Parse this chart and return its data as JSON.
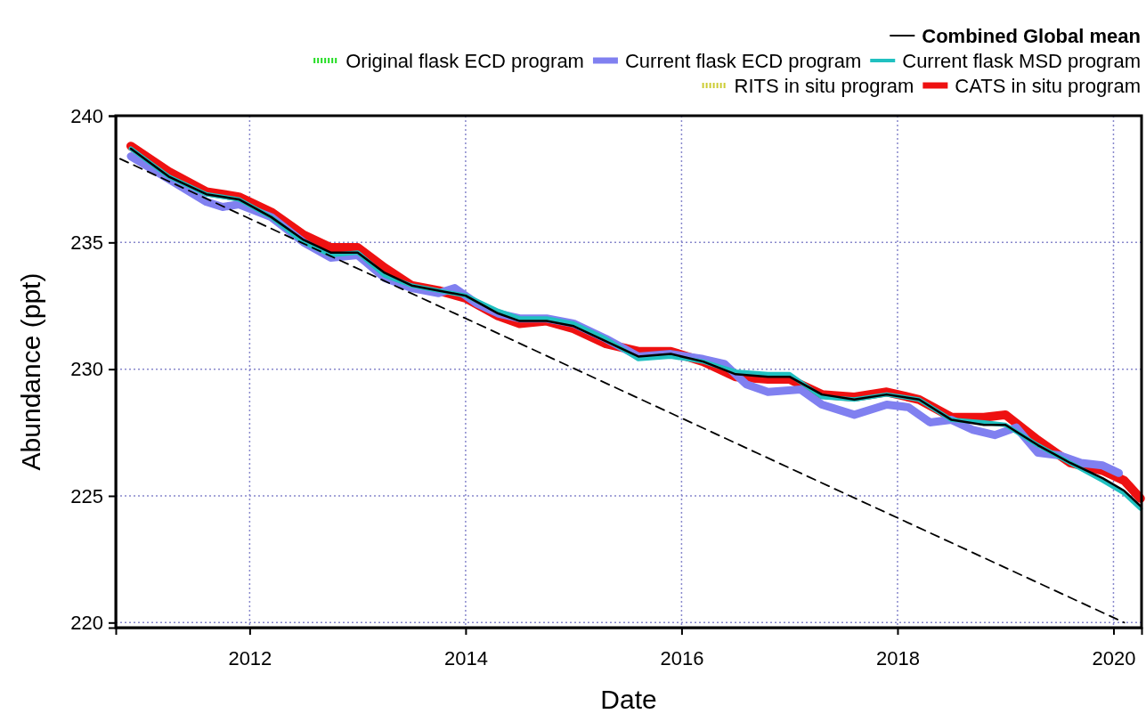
{
  "chart_data": {
    "type": "line",
    "xlabel": "Date",
    "ylabel": "Abundance (ppt)",
    "xlim": [
      2010.76,
      2020.26
    ],
    "xticks": [
      2012,
      2014,
      2016,
      2018,
      2020
    ],
    "ylim": [
      219.8,
      240
    ],
    "yticks": [
      220,
      225,
      230,
      235,
      240
    ],
    "grid": true,
    "legend": "top right",
    "line_style": "solid",
    "marker": "none",
    "x": [
      2010.9,
      2011.25,
      2011.6,
      2011.9,
      2012.2,
      2012.5,
      2012.75,
      2013.0,
      2013.25,
      2013.5,
      2013.75,
      2014.0,
      2014.3,
      2014.5,
      2014.75,
      2015.0,
      2015.3,
      2015.6,
      2015.9,
      2016.2,
      2016.5,
      2016.8,
      2017.0,
      2017.3,
      2017.6,
      2017.9,
      2018.2,
      2018.5,
      2018.8,
      2019.0,
      2019.3,
      2019.6,
      2019.9,
      2020.1,
      2020.25
    ],
    "series": [
      {
        "name": "Combined Global mean",
        "color": "#000000",
        "values": [
          238.7,
          237.6,
          236.9,
          236.7,
          236.0,
          235.1,
          234.6,
          234.6,
          233.8,
          233.3,
          233.1,
          232.9,
          232.2,
          231.9,
          231.9,
          231.7,
          231.1,
          230.5,
          230.6,
          230.3,
          229.8,
          229.7,
          229.7,
          229.0,
          228.8,
          229.0,
          228.8,
          228.0,
          227.8,
          227.8,
          227.0,
          226.3,
          225.7,
          225.2,
          224.6
        ]
      },
      {
        "name": "Original flask ECD program",
        "color": "#22dd22",
        "line_style": "dotted",
        "values": [
          null,
          null,
          null,
          null,
          null,
          null,
          null,
          null,
          null,
          null,
          null,
          null,
          null,
          null,
          null,
          null,
          null,
          null,
          null,
          null,
          null,
          null,
          null,
          null,
          null,
          null,
          null,
          null,
          null,
          null,
          null,
          null,
          null,
          null,
          null
        ]
      },
      {
        "name": "Current flask ECD program",
        "color": "#8080f0",
        "x": [
          2010.9,
          2011.25,
          2011.6,
          2011.75,
          2011.9,
          2012.2,
          2012.5,
          2012.75,
          2013.0,
          2013.25,
          2013.5,
          2013.75,
          2013.9,
          2014.1,
          2014.3,
          2014.5,
          2014.75,
          2015.0,
          2015.3,
          2015.6,
          2015.9,
          2016.2,
          2016.4,
          2016.6,
          2016.8,
          2017.1,
          2017.3,
          2017.6,
          2017.9,
          2018.1,
          2018.3,
          2018.5,
          2018.7,
          2018.9,
          2019.1,
          2019.3,
          2019.5,
          2019.7,
          2019.9,
          2020.05
        ],
        "values": [
          238.4,
          237.5,
          236.6,
          236.4,
          236.5,
          236.0,
          235.0,
          234.4,
          234.5,
          233.6,
          233.2,
          233.0,
          233.2,
          232.6,
          232.2,
          232.0,
          232.0,
          231.8,
          231.2,
          230.5,
          230.6,
          230.4,
          230.2,
          229.4,
          229.1,
          229.2,
          228.6,
          228.2,
          228.6,
          228.5,
          227.9,
          228.0,
          227.6,
          227.4,
          227.7,
          226.7,
          226.6,
          226.3,
          226.2,
          225.9
        ]
      },
      {
        "name": "Current flask MSD program",
        "color": "#20c0c0",
        "values": [
          238.7,
          237.6,
          236.9,
          236.7,
          236.0,
          235.0,
          234.5,
          234.6,
          233.7,
          233.3,
          233.1,
          232.9,
          232.3,
          232.0,
          232.0,
          231.8,
          231.2,
          230.4,
          230.5,
          230.3,
          229.9,
          229.8,
          229.8,
          228.9,
          228.8,
          229.0,
          228.8,
          228.0,
          227.9,
          227.8,
          227.0,
          226.3,
          225.6,
          225.1,
          224.5
        ]
      },
      {
        "name": "RITS in situ program",
        "color": "#cccc33",
        "line_style": "dotted",
        "values": [
          null,
          null,
          null,
          null,
          null,
          null,
          null,
          null,
          null,
          null,
          null,
          null,
          null,
          null,
          null,
          null,
          null,
          null,
          null,
          null,
          null,
          null,
          null,
          null,
          null,
          null,
          null,
          null,
          null,
          null,
          null,
          null,
          null,
          null,
          null
        ]
      },
      {
        "name": "CATS in situ program",
        "color": "#ee1111",
        "values": [
          238.8,
          237.8,
          237.0,
          236.8,
          236.2,
          235.3,
          234.8,
          234.8,
          234.0,
          233.3,
          233.1,
          232.8,
          232.1,
          231.8,
          231.9,
          231.6,
          231.0,
          230.7,
          230.7,
          230.3,
          229.7,
          229.6,
          229.6,
          229.0,
          228.9,
          229.1,
          228.8,
          228.1,
          228.1,
          228.2,
          227.2,
          226.3,
          226.0,
          225.6,
          224.9
        ]
      },
      {
        "color": "#000000",
        "line_style": "dashed",
        "x": [
          2010.8,
          2020.1
        ],
        "values": [
          238.3,
          220.0
        ]
      }
    ]
  }
}
